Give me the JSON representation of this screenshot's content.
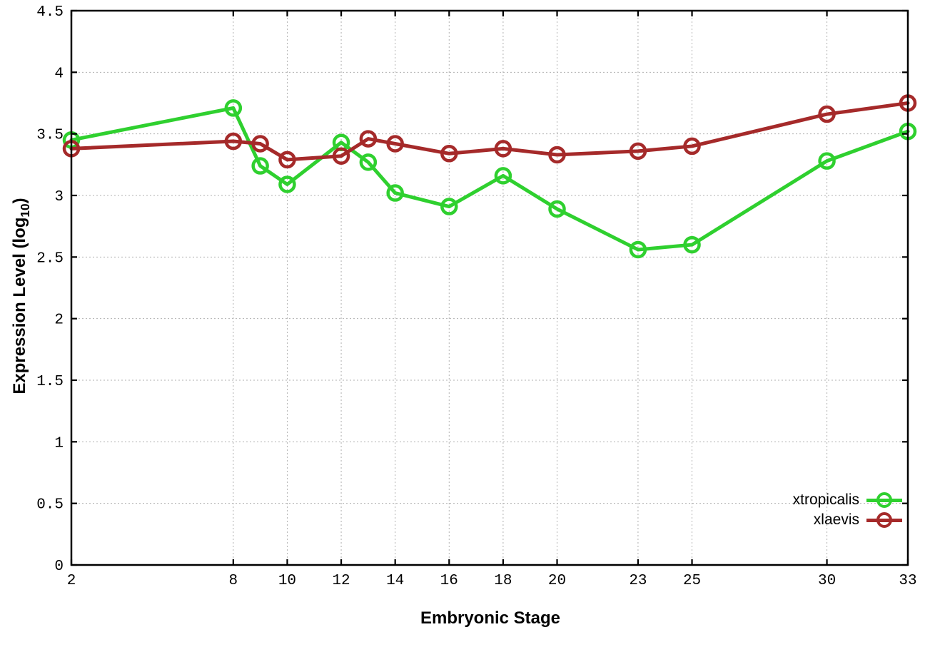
{
  "chart_data": {
    "type": "line",
    "title": "",
    "xlabel": "Embryonic Stage",
    "ylabel": "Expression Level (log10)",
    "ylabel_parts": {
      "main": "Expression Level (log",
      "sub": "10",
      "close": ")"
    },
    "xlim": [
      2,
      33
    ],
    "ylim": [
      0,
      4.5
    ],
    "grid": true,
    "grid_style": "dotted",
    "legend_position": "inside-bottom-right",
    "x_tick_values": [
      2,
      8,
      10,
      12,
      14,
      16,
      18,
      20,
      23,
      25,
      30,
      33
    ],
    "x_tick_labels": [
      "2",
      "8",
      "10",
      "12",
      "14",
      "16",
      "18",
      "20",
      "23",
      "25",
      "30",
      "33"
    ],
    "y_tick_values": [
      0,
      0.5,
      1,
      1.5,
      2,
      2.5,
      3,
      3.5,
      4,
      4.5
    ],
    "y_tick_labels": [
      "0",
      "0.5",
      "1",
      "1.5",
      "2",
      "2.5",
      "3",
      "3.5",
      "4",
      "4.5"
    ],
    "x": [
      2,
      8,
      9,
      10,
      12,
      13,
      14,
      16,
      18,
      20,
      23,
      25,
      30,
      33
    ],
    "series": [
      {
        "name": "xtropicalis",
        "color": "#2fd02f",
        "marker": "open-circle",
        "values": [
          3.45,
          3.71,
          3.24,
          3.09,
          3.43,
          3.27,
          3.02,
          2.91,
          3.16,
          2.89,
          2.56,
          2.6,
          3.28,
          3.52
        ]
      },
      {
        "name": "xlaevis",
        "color": "#a52a2a",
        "marker": "open-circle",
        "values": [
          3.38,
          3.44,
          3.42,
          3.29,
          3.32,
          3.46,
          3.42,
          3.34,
          3.38,
          3.33,
          3.36,
          3.4,
          3.66,
          3.75
        ]
      }
    ],
    "colors": {
      "background": "#ffffff",
      "axis": "#000000",
      "grid": "#b0b0b0"
    }
  }
}
